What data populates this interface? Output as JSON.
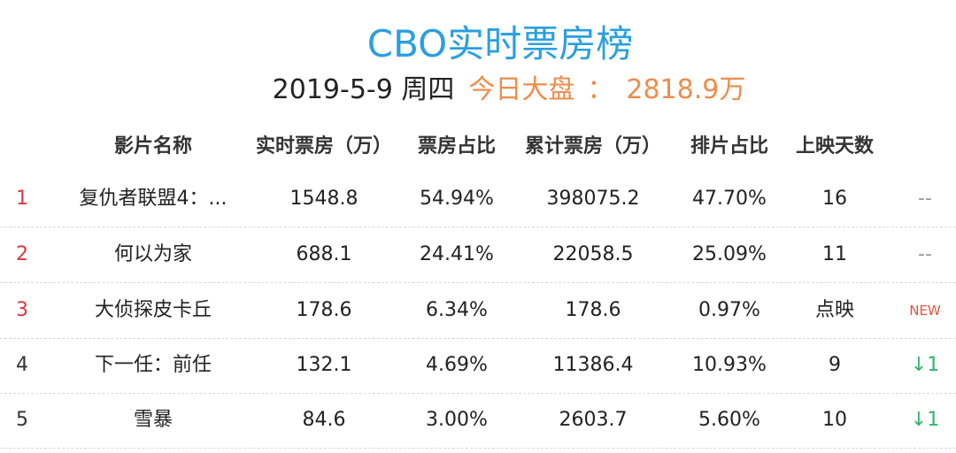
{
  "header": {
    "title": "CBO实时票房榜",
    "date": "2019-5-9 周四",
    "market_label": "今日大盘",
    "colon": "：",
    "market_total": "2818.9万"
  },
  "columns": {
    "name": "影片名称",
    "realtime": "实时票房（万）",
    "share": "票房占比",
    "cumulative": "累计票房（万）",
    "schedule": "排片占比",
    "days": "上映天数"
  },
  "rows": [
    {
      "rank": "1",
      "name": "复仇者联盟4：...",
      "realtime": "1548.8",
      "share": "54.94%",
      "cumulative": "398075.2",
      "schedule": "47.70%",
      "days": "16",
      "change": "--"
    },
    {
      "rank": "2",
      "name": "何以为家",
      "realtime": "688.1",
      "share": "24.41%",
      "cumulative": "22058.5",
      "schedule": "25.09%",
      "days": "11",
      "change": "--"
    },
    {
      "rank": "3",
      "name": "大侦探皮卡丘",
      "realtime": "178.6",
      "share": "6.34%",
      "cumulative": "178.6",
      "schedule": "0.97%",
      "days": "点映",
      "change": "NEW"
    },
    {
      "rank": "4",
      "name": "下一任：前任",
      "realtime": "132.1",
      "share": "4.69%",
      "cumulative": "11386.4",
      "schedule": "10.93%",
      "days": "9",
      "change": "↓1"
    },
    {
      "rank": "5",
      "name": "雪暴",
      "realtime": "84.6",
      "share": "3.00%",
      "cumulative": "2603.7",
      "schedule": "5.60%",
      "days": "10",
      "change": "↓1"
    }
  ],
  "colors": {
    "title": "#2a9fe0",
    "market": "#f08c4a",
    "rank_top": "#d8373c",
    "new_badge": "#e8523a",
    "down_arrow": "#2fb66a"
  }
}
